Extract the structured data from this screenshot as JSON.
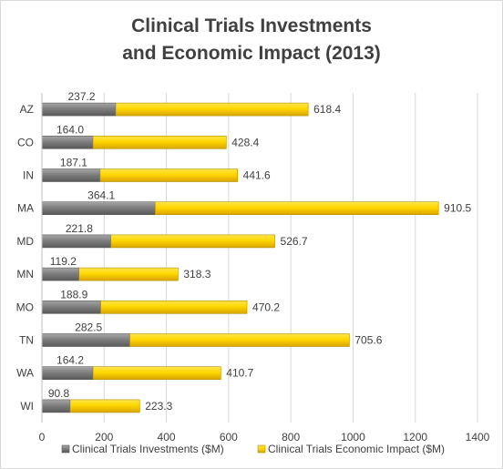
{
  "chart_data": {
    "type": "bar",
    "orientation": "horizontal",
    "stacked": true,
    "title_lines": [
      "Clinical Trials Investments",
      "and Economic Impact (2013)"
    ],
    "categories": [
      "AZ",
      "CO",
      "IN",
      "MA",
      "MD",
      "MN",
      "MO",
      "TN",
      "WA",
      "WI"
    ],
    "series": [
      {
        "name": "Clinical Trials Investments ($M)",
        "color": "#7f7f7f",
        "values": [
          237.2,
          164.0,
          187.1,
          364.1,
          221.8,
          119.2,
          188.9,
          282.5,
          164.2,
          90.8
        ],
        "labels": [
          "237.2",
          "164.0",
          "187.1",
          "364.1",
          "221.8",
          "119.2",
          "188.9",
          "282.5",
          "164.2",
          "90.8"
        ]
      },
      {
        "name": "Clinical Trials Economic Impact ($M)",
        "color": "#ffd700",
        "values": [
          618.4,
          428.4,
          441.6,
          910.5,
          526.7,
          318.3,
          470.2,
          705.6,
          410.7,
          223.3
        ],
        "labels": [
          "618.4",
          "428.4",
          "441.6",
          "910.5",
          "526.7",
          "318.3",
          "470.2",
          "705.6",
          "410.7",
          "223.3"
        ]
      }
    ],
    "xticks": [
      0,
      200,
      400,
      600,
      800,
      1000,
      1200,
      1400
    ],
    "xlim": [
      0,
      1400
    ],
    "grid": true,
    "legend_position": "bottom"
  }
}
